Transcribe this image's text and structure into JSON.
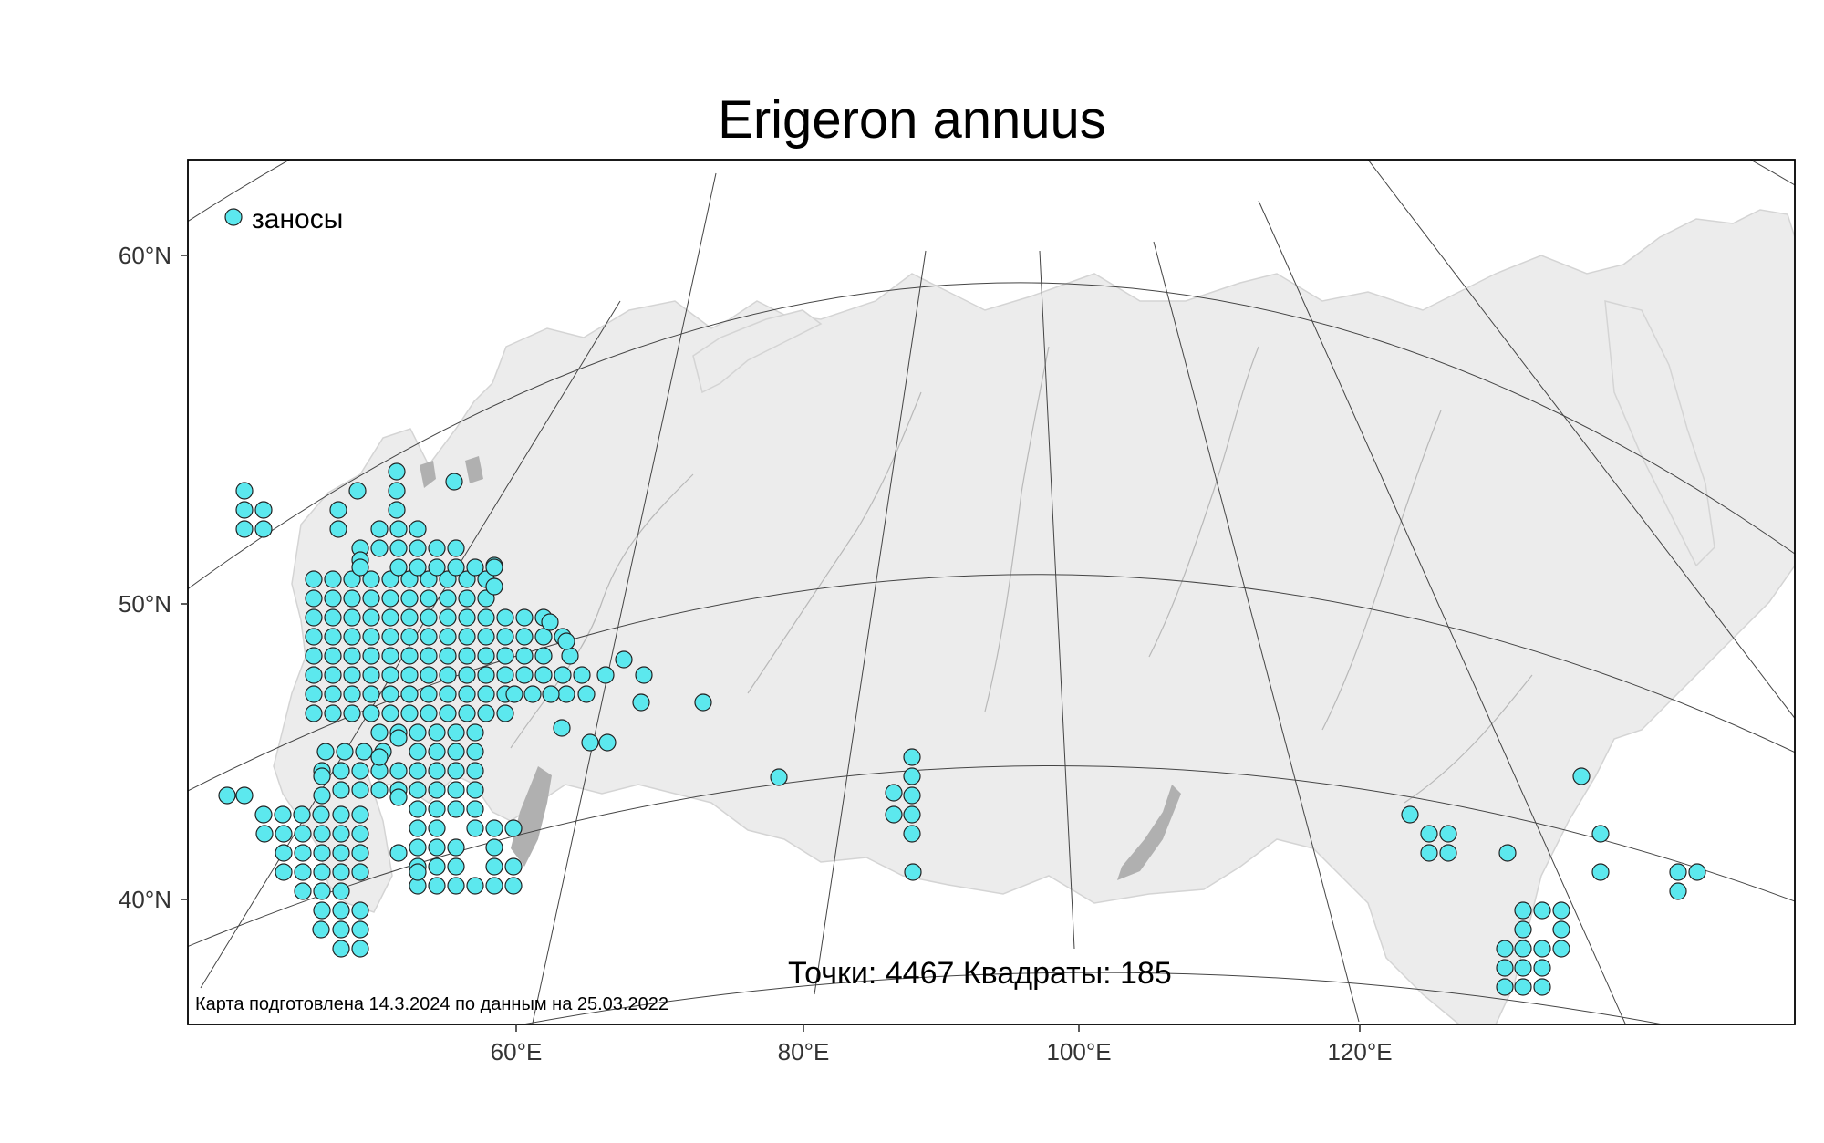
{
  "title": "Erigeron annuus",
  "legend": {
    "label": "заносы",
    "color": "#5ce8ee"
  },
  "stats_text": "Точки: 4467 Квадраты: 185",
  "credit_text": "Карта подготовлена 14.3.2024 по данным на 25.03.2022",
  "y_ticks": [
    "60°N",
    "50°N",
    "40°N"
  ],
  "x_ticks": [
    "60°E",
    "80°E",
    "100°E",
    "120°E"
  ],
  "colors": {
    "land": "#ececec",
    "water": "#b0b0b0",
    "graticule": "#444444",
    "marker": "#5ce8ee"
  },
  "map_data": {
    "type": "occurrence_map",
    "projection": "conic",
    "graticule": {
      "parallels": [
        60,
        50,
        40
      ],
      "meridians": [
        60,
        80,
        100,
        120
      ]
    },
    "occurrence_squares": 185,
    "occurrence_points": 4467
  }
}
